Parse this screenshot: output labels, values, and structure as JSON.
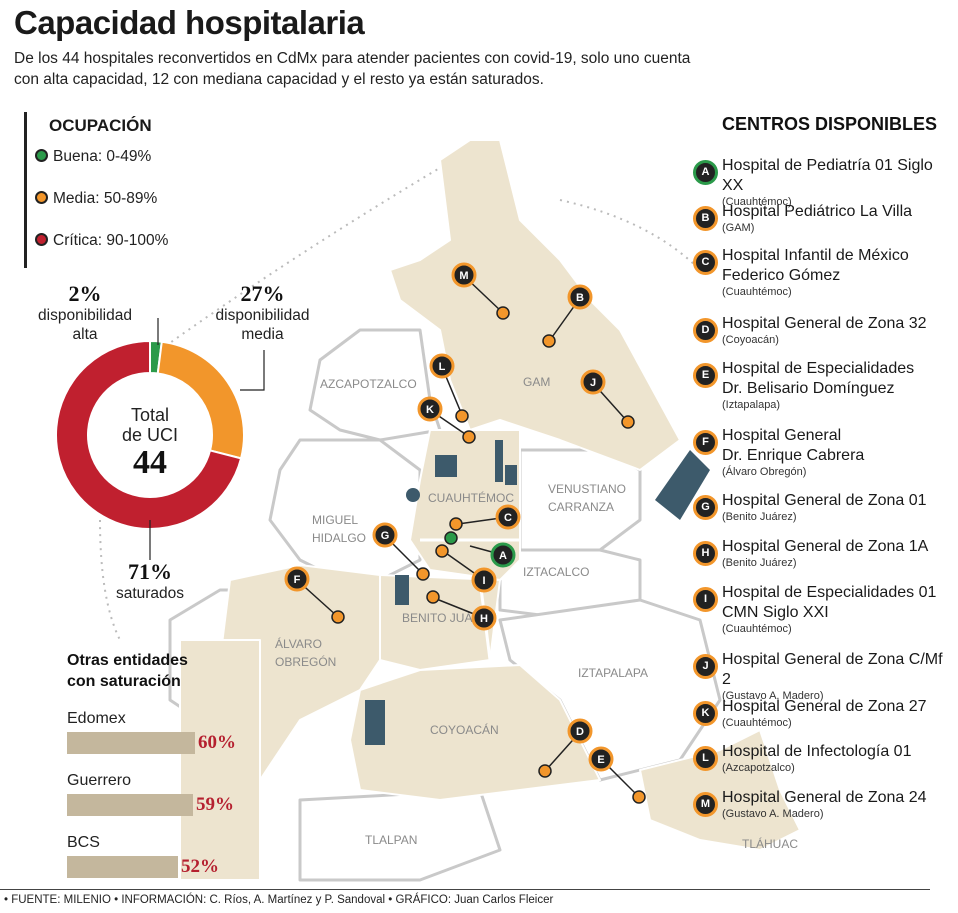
{
  "title": "Capacidad hospitalaria",
  "subtitle": "De los 44 hospitales reconvertidos en CdMx para atender pacientes con covid-19, solo uno cuenta con alta capacidad, 12 con mediana capacidad y el resto ya están saturados.",
  "legend": {
    "heading": "OCUPACIÓN",
    "items": [
      {
        "label": "Buena: 0-49%",
        "color": "#2b9a4a"
      },
      {
        "label": "Media: 50-89%",
        "color": "#f2962b"
      },
      {
        "label": "Crítica: 90-100%",
        "color": "#c0202f"
      }
    ]
  },
  "donut": {
    "center_line1": "Total",
    "center_line2": "de UCI",
    "total": "44",
    "segments": [
      {
        "pct_label": "2%",
        "label_line1": "disponibilidad",
        "label_line2": "alta",
        "value": 2,
        "color": "#2b9a4a"
      },
      {
        "pct_label": "27%",
        "label_line1": "disponibilidad",
        "label_line2": "media",
        "value": 27,
        "color": "#f2962b"
      },
      {
        "pct_label": "71%",
        "label_line1": "saturados",
        "label_line2": "",
        "value": 71,
        "color": "#c0202f"
      }
    ]
  },
  "other_states": {
    "title_line1": "Otras entidades",
    "title_line2": "con saturación",
    "items": [
      {
        "name": "Edomex",
        "value": 60,
        "label": "60%"
      },
      {
        "name": "Guerrero",
        "value": 59,
        "label": "59%"
      },
      {
        "name": "BCS",
        "value": 52,
        "label": "52%"
      }
    ]
  },
  "centers": {
    "heading": "CENTROS DISPONIBLES",
    "items": [
      {
        "letter": "A",
        "name": "Hospital de Pediatría 01 Siglo XX",
        "borough": "(Cuauhtémoc)",
        "status": "good"
      },
      {
        "letter": "B",
        "name": "Hospital Pediátrico La Villa",
        "borough": "(GAM)",
        "status": "medium"
      },
      {
        "letter": "C",
        "name": "Hospital Infantil de México\nFederico Gómez",
        "borough": "(Cuauhtémoc)",
        "status": "medium"
      },
      {
        "letter": "D",
        "name": "Hospital General de Zona 32",
        "borough": "(Coyoacán)",
        "status": "medium"
      },
      {
        "letter": "E",
        "name": "Hospital de Especialidades\nDr. Belisario Domínguez",
        "borough": "(Iztapalapa)",
        "status": "medium"
      },
      {
        "letter": "F",
        "name": "Hospital General\nDr. Enrique Cabrera",
        "borough": "(Álvaro Obregón)",
        "status": "medium"
      },
      {
        "letter": "G",
        "name": "Hospital General de Zona 01",
        "borough": "(Benito Juárez)",
        "status": "medium"
      },
      {
        "letter": "H",
        "name": "Hospital General de Zona 1A",
        "borough": "(Benito Juárez)",
        "status": "medium"
      },
      {
        "letter": "I",
        "name": "Hospital de Especialidades 01\nCMN Siglo XXI",
        "borough": "(Cuauhtémoc)",
        "status": "medium"
      },
      {
        "letter": "J",
        "name": "Hospital General de Zona C/Mf 2",
        "borough": "(Gustavo A. Madero)",
        "status": "medium"
      },
      {
        "letter": "K",
        "name": "Hospital General de Zona 27",
        "borough": "(Cuauhtémoc)",
        "status": "medium"
      },
      {
        "letter": "L",
        "name": "Hospital de Infectología 01",
        "borough": "(Azcapotzalco)",
        "status": "medium"
      },
      {
        "letter": "M",
        "name": "Hospital General de Zona 24",
        "borough": "(Gustavo A. Madero)",
        "status": "medium"
      }
    ]
  },
  "districts": {
    "azcapotzalco": "AZCAPOTZALCO",
    "gam": "GAM",
    "cuauhtemoc": "CUAUHTÉMOC",
    "venustiano_1": "VENUSTIANO",
    "venustiano_2": "CARRANZA",
    "miguel_1": "MIGUEL",
    "miguel_2": "HIDALGO",
    "iztacalco": "IZTACALCO",
    "benito": "BENITO JUÁREZ",
    "alvaro_1": "ÁLVARO",
    "alvaro_2": "OBREGÓN",
    "iztapalapa": "IZTAPALAPA",
    "coyoacan": "COYOACÁN",
    "tlalpan": "TLALPAN",
    "tlahuac": "TLÁHUAC"
  },
  "footer": "• FUENTE: MILENIO • INFORMACIÓN: C. Ríos, A. Martínez y P. Sandoval • GRÁFICO: Juan Carlos Fleicer",
  "colors": {
    "beige": "#ede4cf",
    "map_outline": "#c9c9c9",
    "good": "#2b9a4a",
    "medium": "#f2962b",
    "critical": "#c0202f",
    "bar": "#c4b79d",
    "bar_label": "#b5202f"
  }
}
